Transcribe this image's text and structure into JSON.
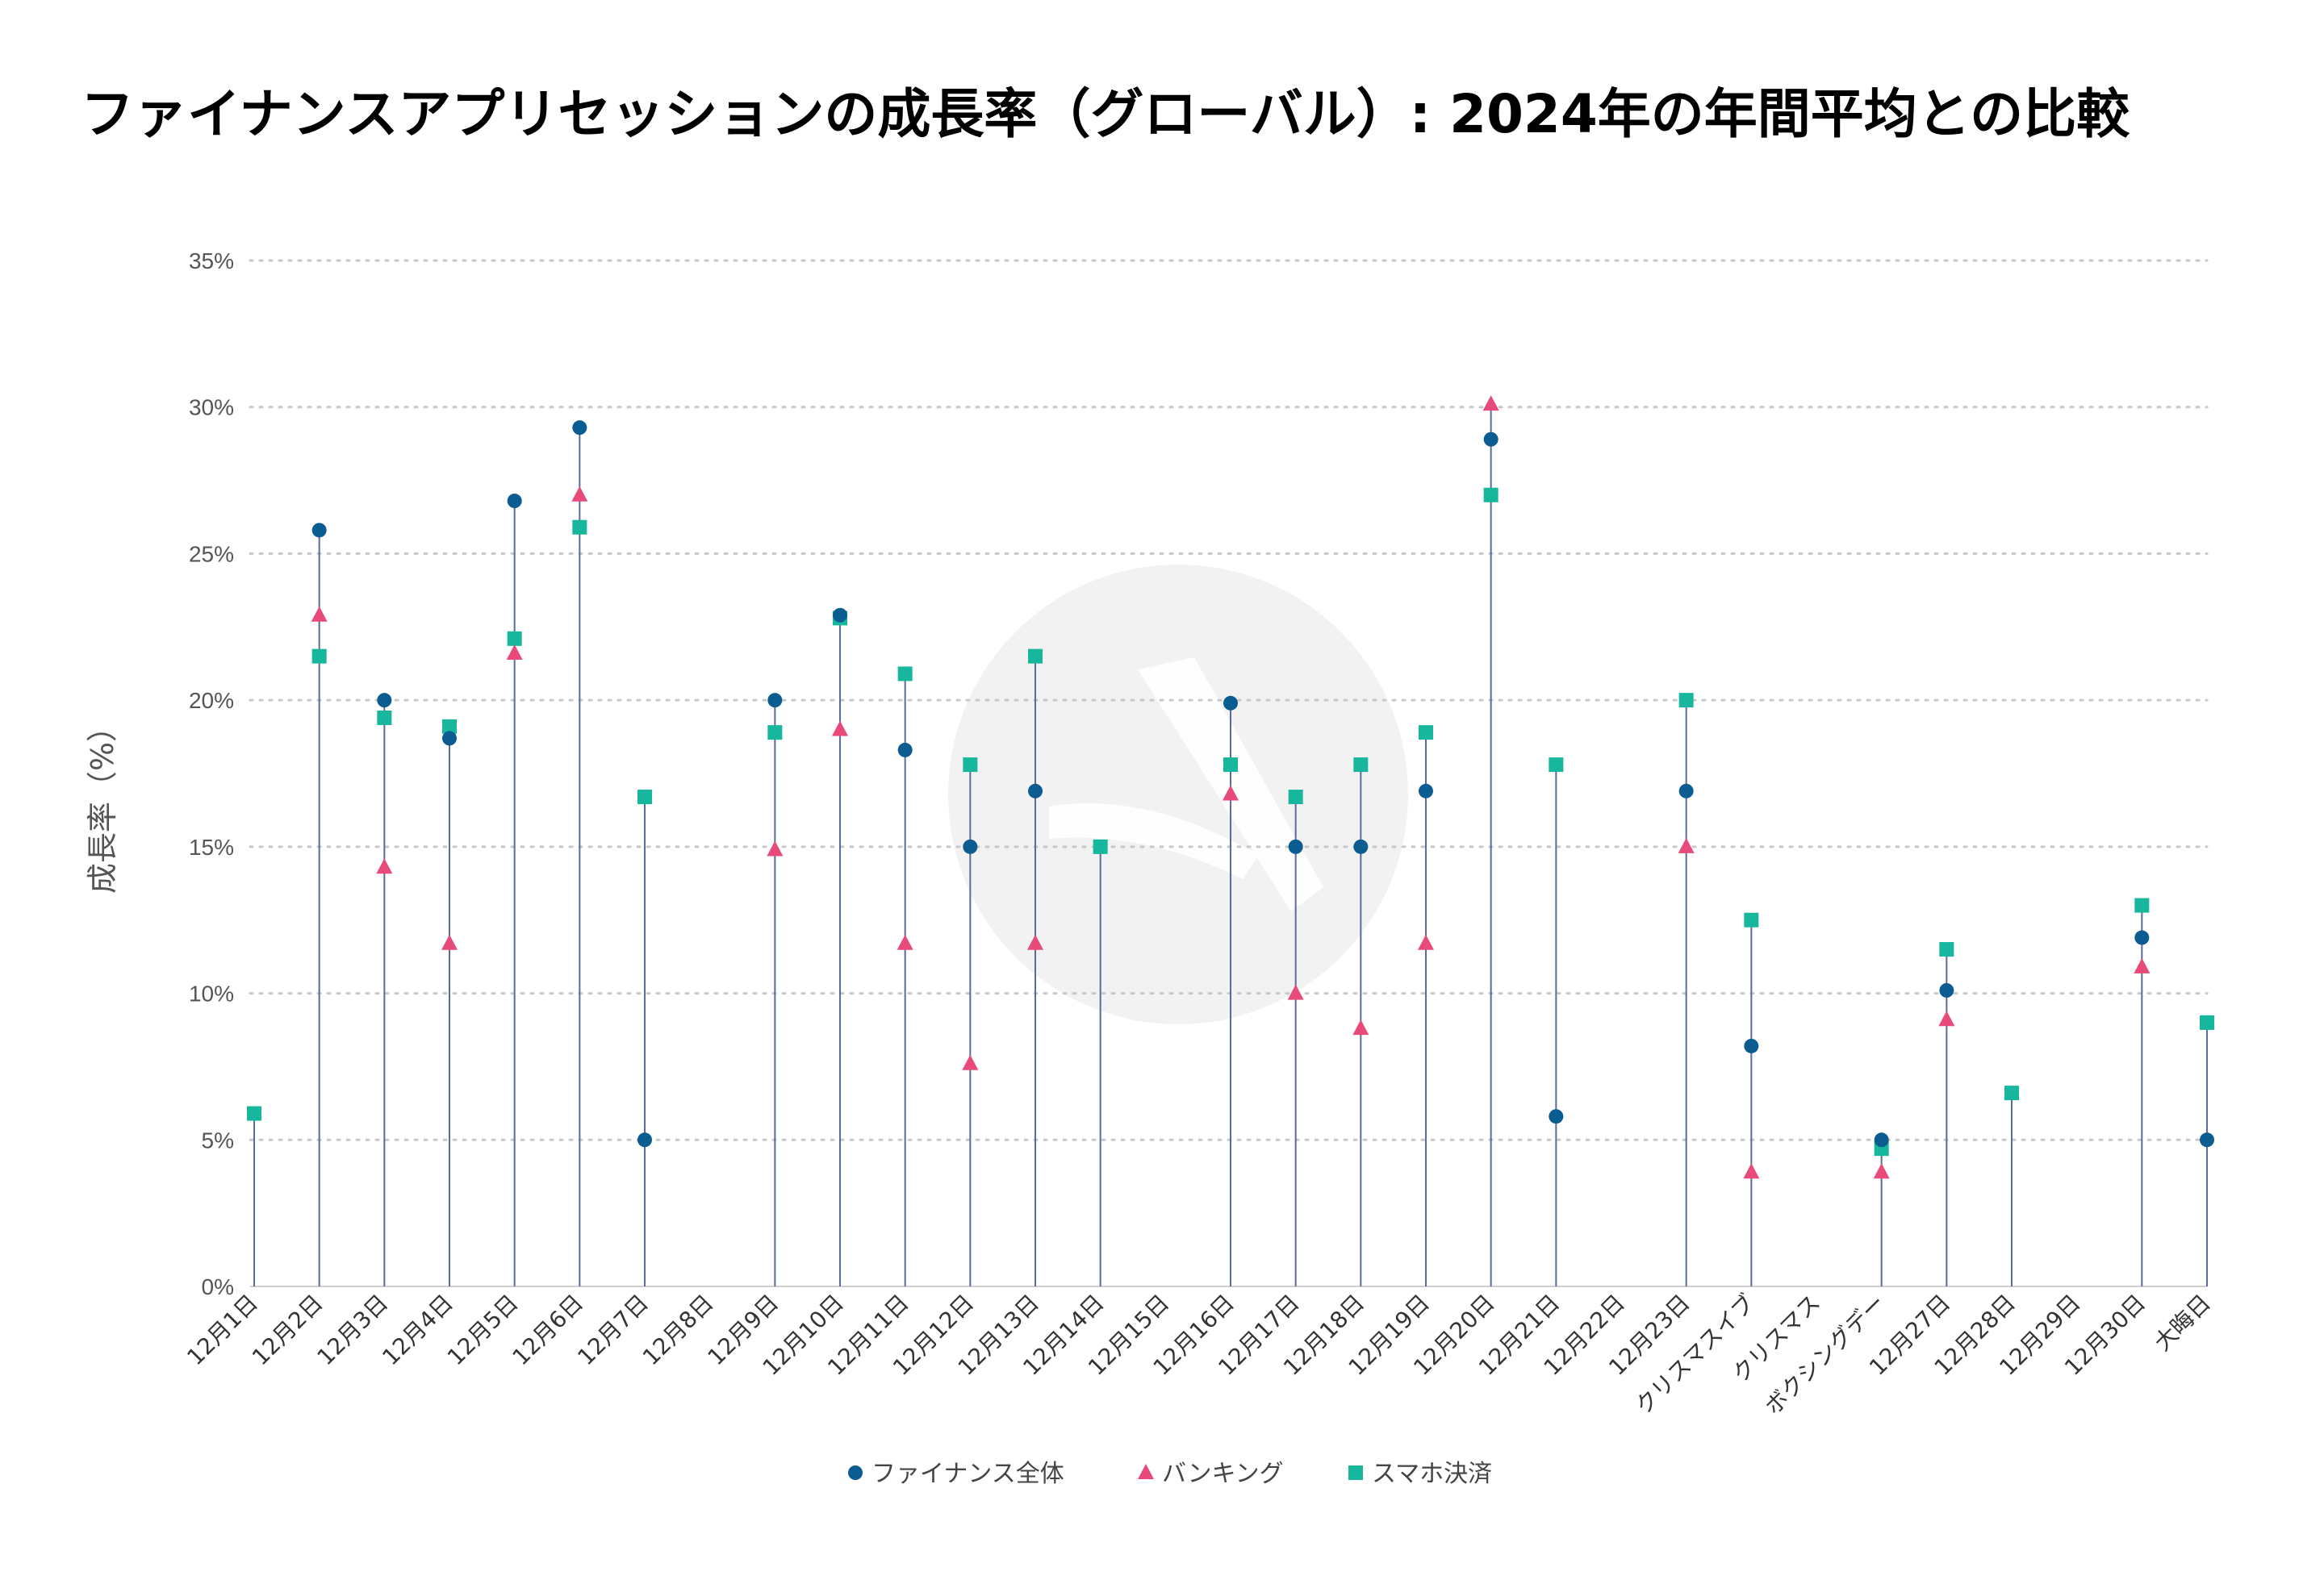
{
  "title": "ファイナンスアプリセッションの成長率（グローバル）: 2024年の年間平均との比較",
  "chart_data": {
    "type": "scatter",
    "title": "ファイナンスアプリセッションの成長率（グローバル）: 2024年の年間平均との比較",
    "xlabel": "",
    "ylabel": "成長率（%）",
    "ylim": [
      0,
      35
    ],
    "yticks": [
      0,
      5,
      10,
      15,
      20,
      25,
      30,
      35
    ],
    "ytick_labels": [
      "0%",
      "5%",
      "10%",
      "15%",
      "20%",
      "25%",
      "30%",
      "35%"
    ],
    "grid": true,
    "legend_position": "bottom",
    "categories": [
      "12月1日",
      "12月2日",
      "12月3日",
      "12月4日",
      "12月5日",
      "12月6日",
      "12月7日",
      "12月8日",
      "12月9日",
      "12月10日",
      "12月11日",
      "12月12日",
      "12月13日",
      "12月14日",
      "12月15日",
      "12月16日",
      "12月17日",
      "12月18日",
      "12月19日",
      "12月20日",
      "12月21日",
      "12月22日",
      "12月23日",
      "クリスマスイブ",
      "クリスマス",
      "ボクシングデー",
      "12月27日",
      "12月28日",
      "12月29日",
      "12月30日",
      "大晦日"
    ],
    "series": [
      {
        "name": "ファイナンス全体",
        "marker": "circle",
        "color": "#0b5c91",
        "values": [
          null,
          25.8,
          20.0,
          18.7,
          26.8,
          29.3,
          5.0,
          null,
          20.0,
          22.9,
          18.3,
          15.0,
          16.9,
          null,
          null,
          19.9,
          15.0,
          15.0,
          16.9,
          28.9,
          5.8,
          null,
          16.9,
          8.2,
          null,
          5.0,
          10.1,
          null,
          null,
          11.9,
          5.0
        ]
      },
      {
        "name": "バンキング",
        "marker": "triangle",
        "color": "#e84b7a",
        "values": [
          null,
          22.9,
          14.3,
          11.7,
          21.6,
          27.0,
          null,
          null,
          14.9,
          19.0,
          11.7,
          7.6,
          11.7,
          null,
          null,
          16.8,
          10.0,
          8.8,
          11.7,
          30.1,
          null,
          null,
          15.0,
          3.9,
          null,
          3.9,
          9.1,
          null,
          null,
          10.9,
          null
        ]
      },
      {
        "name": "スマホ決済",
        "marker": "square",
        "color": "#16b79c",
        "values": [
          5.9,
          21.5,
          19.4,
          19.1,
          22.1,
          25.9,
          16.7,
          null,
          18.9,
          22.8,
          20.9,
          17.8,
          21.5,
          15.0,
          null,
          17.8,
          16.7,
          17.8,
          18.9,
          27.0,
          17.8,
          null,
          20.0,
          12.5,
          null,
          4.7,
          11.5,
          6.6,
          null,
          13.0,
          9.0
        ]
      }
    ]
  },
  "colors": {
    "stem": "#5b6b9c",
    "grid": "#c8c8c8",
    "watermark": "#f2f2f2"
  },
  "watermark_icon": "app-logo-icon"
}
